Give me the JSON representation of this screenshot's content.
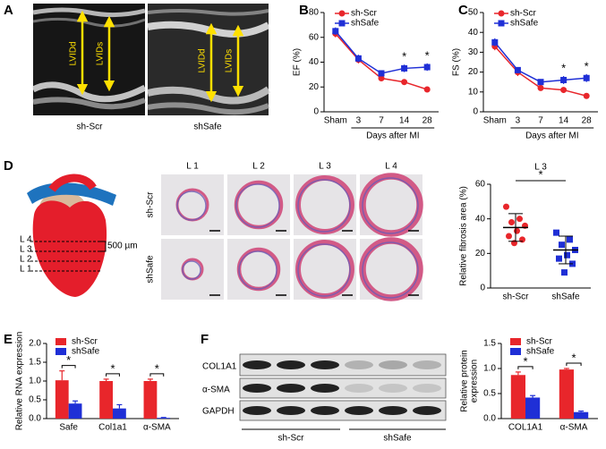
{
  "panels": {
    "labels": [
      "A",
      "B",
      "C",
      "D",
      "E",
      "F"
    ]
  },
  "echo": {
    "groups": [
      "sh-Scr",
      "shSafe"
    ],
    "measures": [
      "LVIDd",
      "LVIDs"
    ]
  },
  "heart_diagram": {
    "levels": [
      "L 4",
      "L 3",
      "L 2",
      "L 1"
    ],
    "spacing": "500 µm"
  },
  "histology": {
    "levels": [
      "L 1",
      "L 2",
      "L 3",
      "L 4"
    ],
    "groups": [
      "sh-Scr",
      "shSafe"
    ]
  },
  "western_blot": {
    "proteins": [
      "COL1A1",
      "α-SMA",
      "GAPDH"
    ],
    "groups": [
      "sh-Scr",
      "shSafe"
    ]
  },
  "chart_data": [
    {
      "type": "line",
      "y_label": "EF (%)",
      "x_label": "Days after MI",
      "categories": [
        "Sham",
        "3",
        "7",
        "14",
        "28"
      ],
      "series": [
        {
          "name": "sh-Scr",
          "color": "#e8262b",
          "marker": "circle",
          "values": [
            63,
            42,
            27,
            24,
            18
          ],
          "errors": [
            3,
            3,
            2,
            2,
            2
          ]
        },
        {
          "name": "shSafe",
          "color": "#1f2fd6",
          "marker": "square",
          "values": [
            65,
            43,
            31,
            35,
            36
          ],
          "errors": [
            3,
            3,
            2,
            3,
            3
          ]
        }
      ],
      "ylim": [
        0,
        80
      ],
      "yticks": [
        0,
        20,
        40,
        60,
        80
      ],
      "annotations": [
        {
          "text": "*",
          "at": "14"
        },
        {
          "text": "*",
          "at": "28"
        }
      ]
    },
    {
      "type": "line",
      "y_label": "FS (%)",
      "x_label": "Days after MI",
      "categories": [
        "Sham",
        "3",
        "7",
        "14",
        "28"
      ],
      "series": [
        {
          "name": "sh-Scr",
          "color": "#e8262b",
          "marker": "circle",
          "values": [
            33,
            20,
            12,
            11,
            8
          ],
          "errors": [
            2,
            2,
            1,
            1,
            1
          ]
        },
        {
          "name": "shSafe",
          "color": "#1f2fd6",
          "marker": "square",
          "values": [
            35,
            21,
            15,
            16,
            17
          ],
          "errors": [
            2,
            1,
            1,
            2,
            2
          ]
        }
      ],
      "ylim": [
        0,
        50
      ],
      "yticks": [
        0,
        10,
        20,
        30,
        40,
        50
      ],
      "annotations": [
        {
          "text": "*",
          "at": "14"
        },
        {
          "text": "*",
          "at": "28"
        }
      ]
    },
    {
      "type": "scatter",
      "title": "L 3",
      "y_label": "Relative fibrosis area (%)",
      "categories": [
        "sh-Scr",
        "shSafe"
      ],
      "series": [
        {
          "name": "sh-Scr",
          "color": "#e8262b",
          "marker": "circle",
          "values": [
            47,
            40,
            38,
            36,
            33,
            30,
            28,
            26
          ],
          "mean": 35,
          "sd": 8
        },
        {
          "name": "shSafe",
          "color": "#1f2fd6",
          "marker": "square",
          "values": [
            32,
            28,
            25,
            22,
            19,
            17,
            14,
            9
          ],
          "mean": 22,
          "sd": 8
        }
      ],
      "ylim": [
        0,
        60
      ],
      "yticks": [
        0,
        20,
        40,
        60
      ],
      "annotations": [
        {
          "text": "*"
        }
      ]
    },
    {
      "type": "bar",
      "y_label": "Relative RNA expression",
      "categories": [
        "Safe",
        "Col1a1",
        "α-SMA"
      ],
      "series": [
        {
          "name": "sh-Scr",
          "color": "#e8262b",
          "values": [
            1.02,
            1.0,
            1.0
          ],
          "errors": [
            0.25,
            0.05,
            0.05
          ]
        },
        {
          "name": "shSafe",
          "color": "#1f2fd6",
          "values": [
            0.4,
            0.27,
            0.02
          ],
          "errors": [
            0.07,
            0.1,
            0.01
          ]
        }
      ],
      "ylim": [
        0,
        2
      ],
      "yticks": [
        {
          "value": 0,
          "label": "0.0"
        },
        0.5,
        {
          "value": 1,
          "label": "1.0"
        },
        1.5,
        {
          "value": 2,
          "label": "2.0"
        }
      ],
      "annotations": [
        {
          "text": "*",
          "at": "Safe"
        },
        {
          "text": "*",
          "at": "Col1a1"
        },
        {
          "text": "*",
          "at": "α-SMA"
        }
      ]
    },
    {
      "type": "bar",
      "y_label": [
        "Relative protein",
        "expression"
      ],
      "categories": [
        "COL1A1",
        "α-SMA"
      ],
      "series": [
        {
          "name": "sh-Scr",
          "color": "#e8262b",
          "values": [
            0.87,
            0.98
          ],
          "errors": [
            0.06,
            0.02
          ]
        },
        {
          "name": "shSafe",
          "color": "#1f2fd6",
          "values": [
            0.42,
            0.13
          ],
          "errors": [
            0.04,
            0.02
          ]
        }
      ],
      "ylim": [
        0,
        1.5
      ],
      "yticks": [
        {
          "value": 0,
          "label": "0.0"
        },
        0.5,
        {
          "value": 1,
          "label": "1.0"
        },
        1.5
      ],
      "annotations": [
        {
          "text": "*",
          "at": "COL1A1"
        },
        {
          "text": "*",
          "at": "α-SMA"
        }
      ]
    }
  ]
}
